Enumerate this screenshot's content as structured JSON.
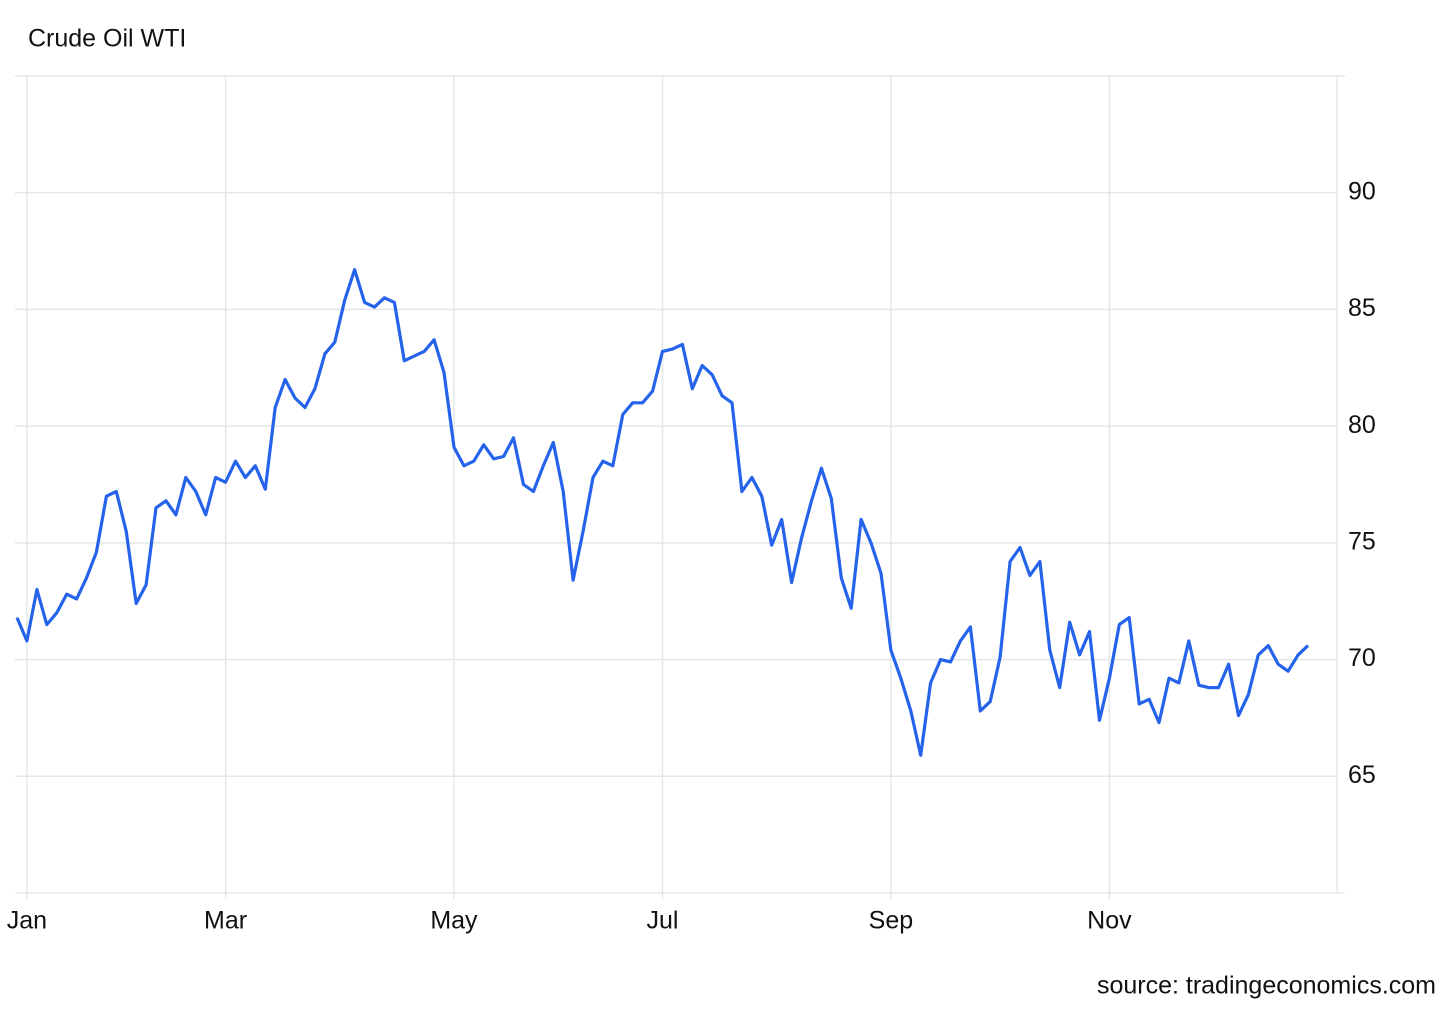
{
  "chart_data": {
    "type": "line",
    "title": "Crude Oil WTI",
    "source": "source: tradingeconomics.com",
    "categories": [
      null,
      "Jan",
      null,
      null,
      null,
      null,
      null,
      null,
      null,
      null,
      null,
      null,
      null,
      null,
      null,
      null,
      null,
      null,
      null,
      null,
      null,
      "Mar",
      null,
      null,
      null,
      null,
      null,
      null,
      null,
      null,
      null,
      null,
      null,
      null,
      null,
      null,
      null,
      null,
      null,
      null,
      null,
      null,
      null,
      null,
      "May",
      null,
      null,
      null,
      null,
      null,
      null,
      null,
      null,
      null,
      null,
      null,
      null,
      null,
      null,
      null,
      null,
      null,
      null,
      null,
      null,
      "Jul",
      null,
      null,
      null,
      null,
      null,
      null,
      null,
      null,
      null,
      null,
      null,
      null,
      null,
      null,
      null,
      null,
      null,
      null,
      null,
      null,
      null,
      null,
      "Sep",
      null,
      null,
      null,
      null,
      null,
      null,
      null,
      null,
      null,
      null,
      null,
      null,
      null,
      null,
      null,
      null,
      null,
      null,
      null,
      null,
      null,
      "Nov",
      null,
      null,
      null,
      null,
      null,
      null,
      null,
      null,
      null,
      null,
      null,
      null,
      null,
      null,
      null,
      null,
      null,
      null,
      null,
      null
    ],
    "series": [
      {
        "name": "Crude Oil WTI",
        "color": "#2563eb",
        "values": [
          71.8,
          70.8,
          73.0,
          71.5,
          72.0,
          72.8,
          72.6,
          73.5,
          74.6,
          77.0,
          77.2,
          75.5,
          72.4,
          73.2,
          76.5,
          76.8,
          76.2,
          77.8,
          77.2,
          76.2,
          77.8,
          77.6,
          78.5,
          77.8,
          78.3,
          77.3,
          80.8,
          82.0,
          81.2,
          80.8,
          81.6,
          83.1,
          83.6,
          85.4,
          86.7,
          85.3,
          85.1,
          85.5,
          85.3,
          82.8,
          83.0,
          83.2,
          83.7,
          82.3,
          79.1,
          78.3,
          78.5,
          79.2,
          78.6,
          78.7,
          79.5,
          77.5,
          77.2,
          78.3,
          79.3,
          77.2,
          73.4,
          75.5,
          77.8,
          78.5,
          78.3,
          80.5,
          81.0,
          81.0,
          81.5,
          83.2,
          83.3,
          83.5,
          81.6,
          82.6,
          82.2,
          81.3,
          81.0,
          77.2,
          77.8,
          77.0,
          74.9,
          76.0,
          73.3,
          75.2,
          76.8,
          78.2,
          76.9,
          73.5,
          72.2,
          76.0,
          75.0,
          73.7,
          70.4,
          69.2,
          67.8,
          65.9,
          69.0,
          70.0,
          69.9,
          70.8,
          71.4,
          67.8,
          68.2,
          70.1,
          74.2,
          74.8,
          73.6,
          74.2,
          70.4,
          68.8,
          71.6,
          70.2,
          71.2,
          67.4,
          69.2,
          71.5,
          71.8,
          68.1,
          68.3,
          67.3,
          69.2,
          69.0,
          70.8,
          68.9,
          68.8,
          68.8,
          69.8,
          67.6,
          68.5,
          70.2,
          70.6,
          69.8,
          69.5,
          70.2,
          70.6
        ]
      }
    ],
    "ylim": [
      60,
      95
    ],
    "yticks": [
      65,
      70,
      75,
      80,
      85,
      90
    ],
    "grid": true
  }
}
